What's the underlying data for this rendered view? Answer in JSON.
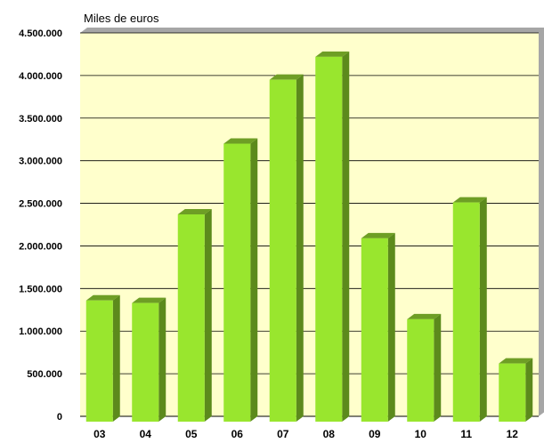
{
  "chart_data": {
    "type": "bar",
    "title": "",
    "unit_label": "Miles de euros",
    "xlabel": "",
    "ylabel": "",
    "categories": [
      "03",
      "04",
      "05",
      "06",
      "07",
      "08",
      "09",
      "10",
      "11",
      "12"
    ],
    "values": [
      1360000,
      1330000,
      2370000,
      3200000,
      3950000,
      4220000,
      2090000,
      1140000,
      2510000,
      620000
    ],
    "ylim": [
      0,
      4500000
    ],
    "yticks": [
      0,
      500000,
      1000000,
      1500000,
      2000000,
      2500000,
      3000000,
      3500000,
      4000000,
      4500000
    ],
    "ytick_labels": [
      "0",
      "500.000",
      "1.000.000",
      "1.500.000",
      "2.000.000",
      "2.500.000",
      "3.000.000",
      "3.500.000",
      "4.000.000",
      "4.500.000"
    ],
    "grid": true,
    "legend": "none",
    "colors": {
      "plot_background": "#FFFFCC",
      "bar_front": "#99E62E",
      "bar_side": "#5C8A1C",
      "bar_top": "#6E9E25",
      "wall_shadow": "#A6A6A6",
      "gridline": "#000000"
    }
  }
}
